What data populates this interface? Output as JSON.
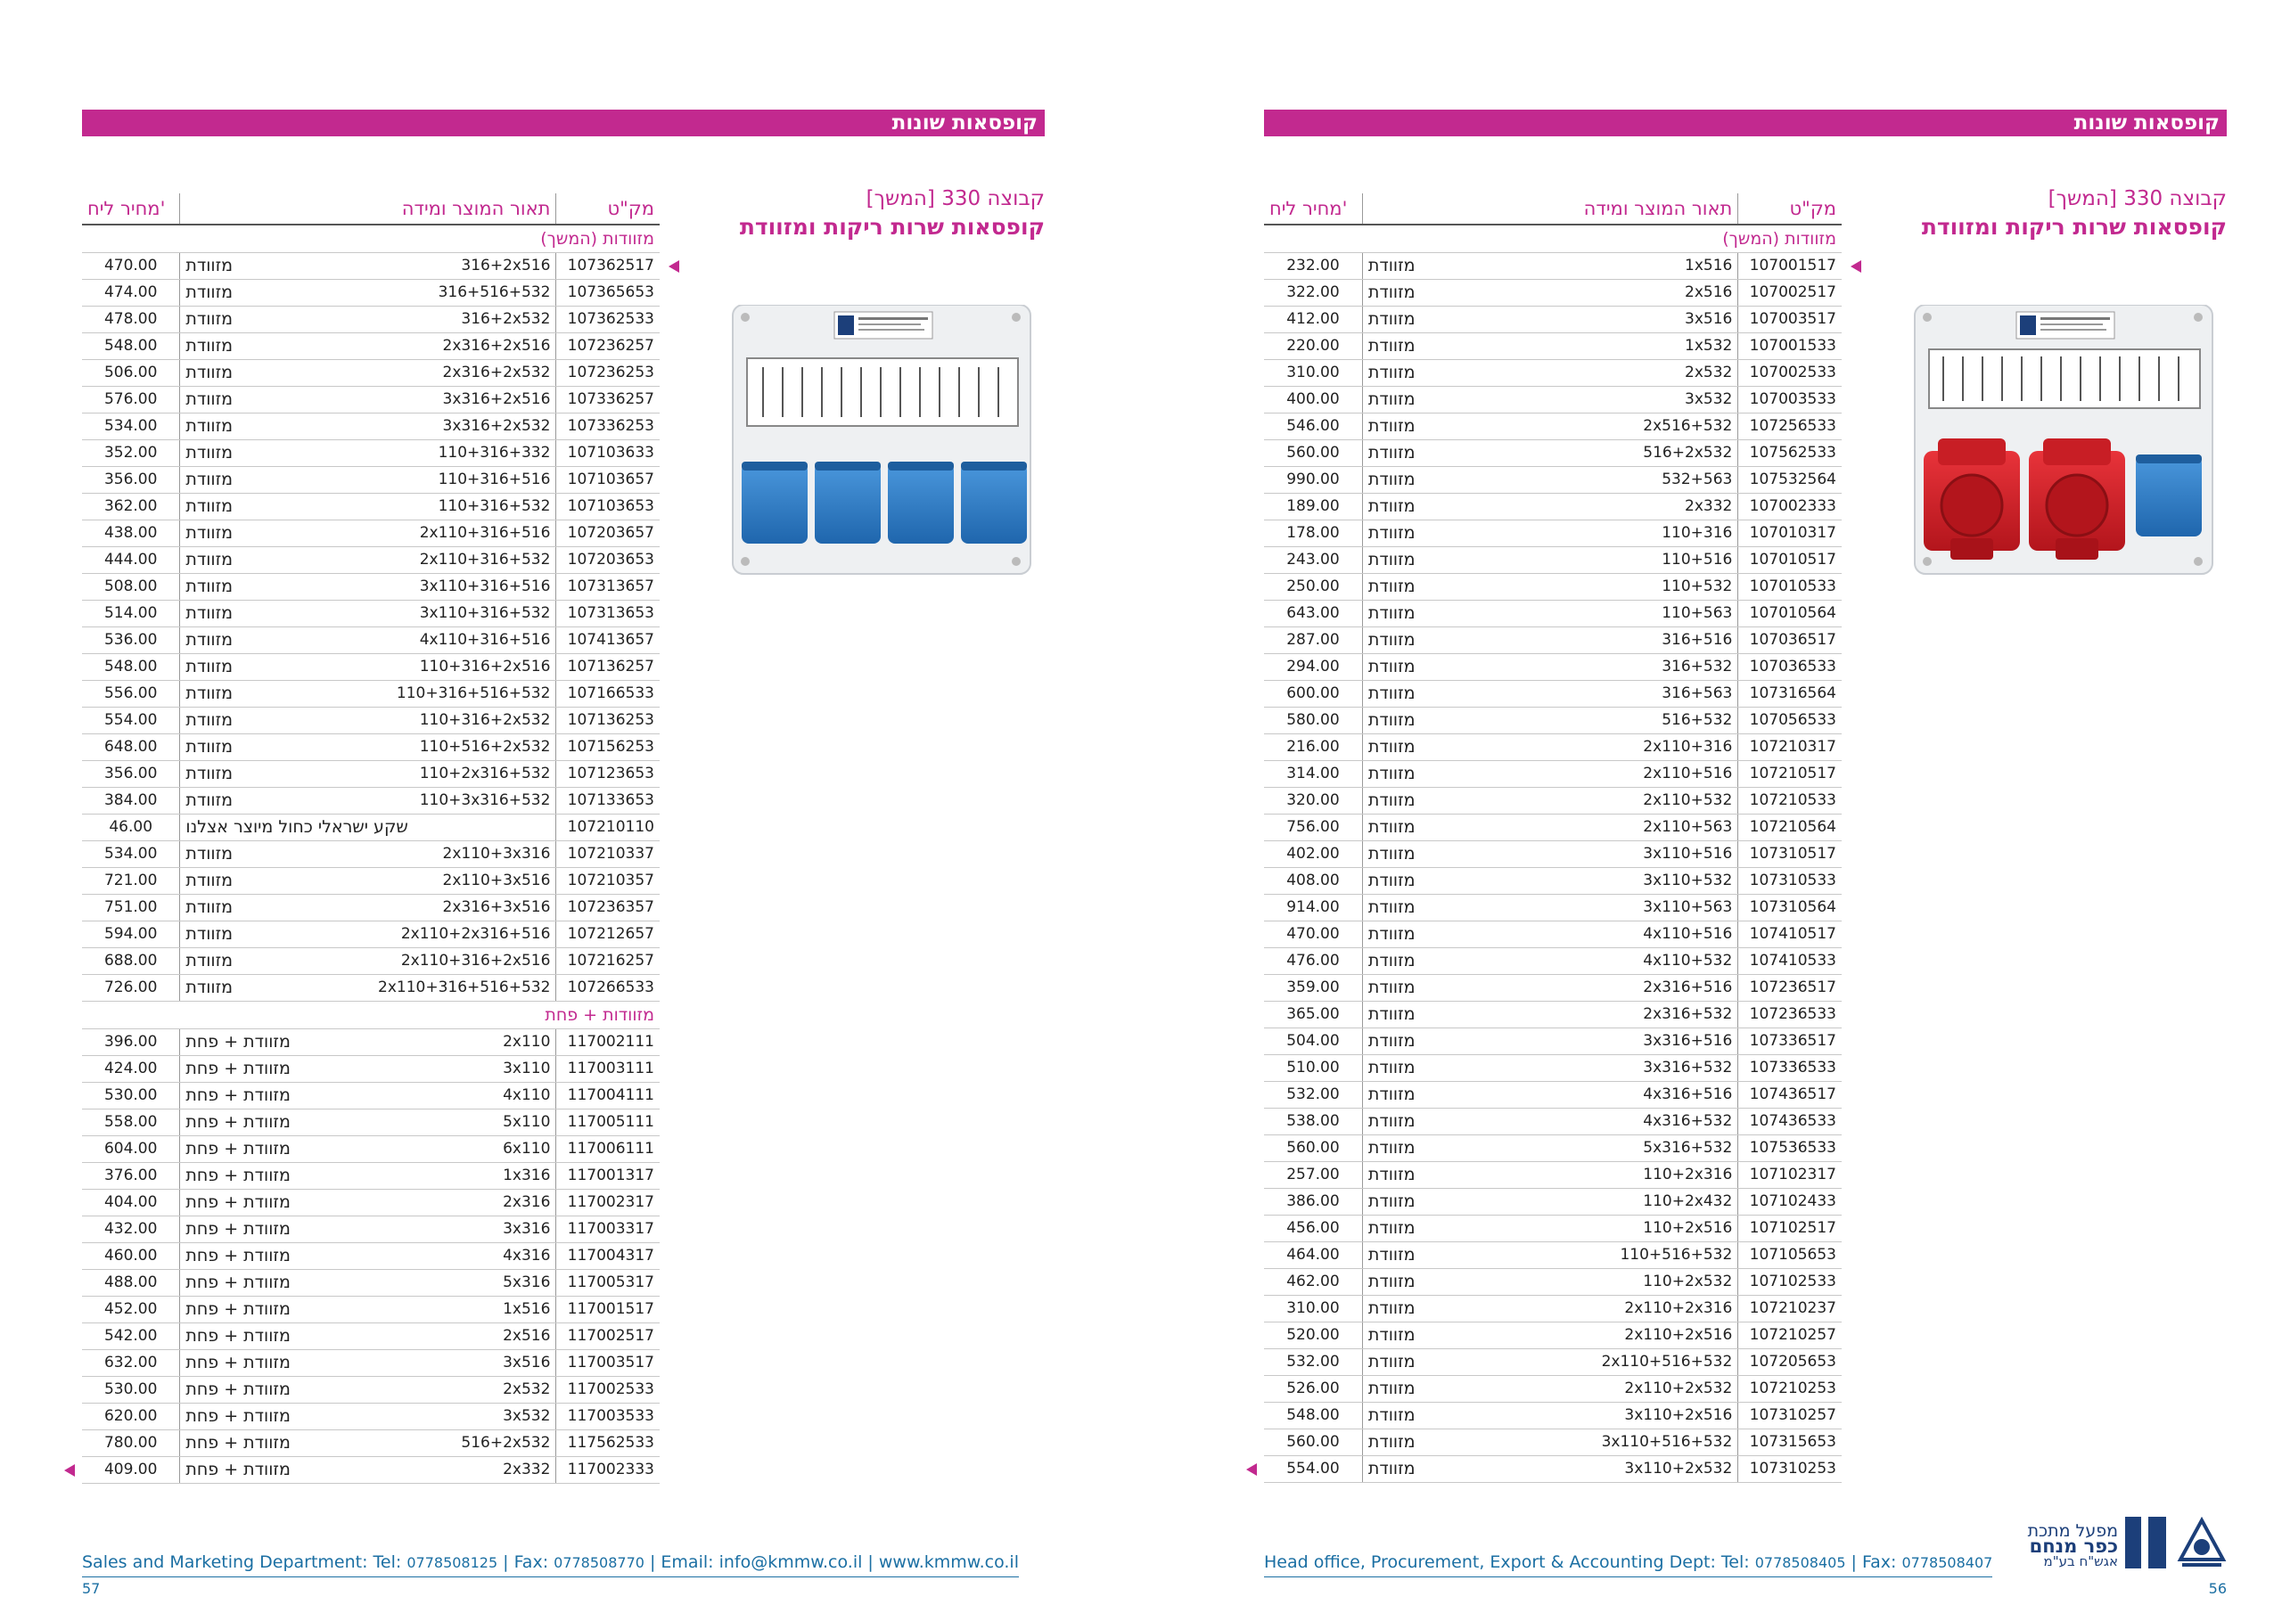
{
  "section_title": "קופסאות שונות",
  "group_title": "קבוצה 330 [המשך]",
  "group_subtitle": "קופסאות שרות ריקות ומזוודת",
  "headers": {
    "code": "מק\"ט",
    "desc": "תאור המוצר ומידה",
    "price": "מחיר ליח'"
  },
  "subheader_continued": "מזוודות (המשך)",
  "subheader_plate": "מזוודות + פחת",
  "right_rows": [
    [
      "107001517",
      "מזוודת",
      "1x516",
      "232.00"
    ],
    [
      "107002517",
      "מזוודת",
      "2x516",
      "322.00"
    ],
    [
      "107003517",
      "מזוודת",
      "3x516",
      "412.00"
    ],
    [
      "107001533",
      "מזוודת",
      "1x532",
      "220.00"
    ],
    [
      "107002533",
      "מזוודת",
      "2x532",
      "310.00"
    ],
    [
      "107003533",
      "מזוודת",
      "3x532",
      "400.00"
    ],
    [
      "107256533",
      "מזוודת",
      "2x516+532",
      "546.00"
    ],
    [
      "107562533",
      "מזוודת",
      "516+2x532",
      "560.00"
    ],
    [
      "107532564",
      "מזוודת",
      "532+563",
      "990.00"
    ],
    [
      "107002333",
      "מזוודת",
      "2x332",
      "189.00"
    ],
    [
      "107010317",
      "מזוודת",
      "110+316",
      "178.00"
    ],
    [
      "107010517",
      "מזוודת",
      "110+516",
      "243.00"
    ],
    [
      "107010533",
      "מזוודת",
      "110+532",
      "250.00"
    ],
    [
      "107010564",
      "מזוודת",
      "110+563",
      "643.00"
    ],
    [
      "107036517",
      "מזוודת",
      "316+516",
      "287.00"
    ],
    [
      "107036533",
      "מזוודת",
      "316+532",
      "294.00"
    ],
    [
      "107316564",
      "מזוודת",
      "316+563",
      "600.00"
    ],
    [
      "107056533",
      "מזוודת",
      "516+532",
      "580.00"
    ],
    [
      "107210317",
      "מזוודת",
      "2x110+316",
      "216.00"
    ],
    [
      "107210517",
      "מזוודת",
      "2x110+516",
      "314.00"
    ],
    [
      "107210533",
      "מזוודת",
      "2x110+532",
      "320.00"
    ],
    [
      "107210564",
      "מזוודת",
      "2x110+563",
      "756.00"
    ],
    [
      "107310517",
      "מזוודת",
      "3x110+516",
      "402.00"
    ],
    [
      "107310533",
      "מזוודת",
      "3x110+532",
      "408.00"
    ],
    [
      "107310564",
      "מזוודת",
      "3x110+563",
      "914.00"
    ],
    [
      "107410517",
      "מזוודת",
      "4x110+516",
      "470.00"
    ],
    [
      "107410533",
      "מזוודת",
      "4x110+532",
      "476.00"
    ],
    [
      "107236517",
      "מזוודת",
      "2x316+516",
      "359.00"
    ],
    [
      "107236533",
      "מזוודת",
      "2x316+532",
      "365.00"
    ],
    [
      "107336517",
      "מזוודת",
      "3x316+516",
      "504.00"
    ],
    [
      "107336533",
      "מזוודת",
      "3x316+532",
      "510.00"
    ],
    [
      "107436517",
      "מזוודת",
      "4x316+516",
      "532.00"
    ],
    [
      "107436533",
      "מזוודת",
      "4x316+532",
      "538.00"
    ],
    [
      "107536533",
      "מזוודת",
      "5x316+532",
      "560.00"
    ],
    [
      "107102317",
      "מזוודת",
      "110+2x316",
      "257.00"
    ],
    [
      "107102433",
      "מזוודת",
      "110+2x432",
      "386.00"
    ],
    [
      "107102517",
      "מזוודת",
      "110+2x516",
      "456.00"
    ],
    [
      "107105653",
      "מזוודת",
      "110+516+532",
      "464.00"
    ],
    [
      "107102533",
      "מזוודת",
      "110+2x532",
      "462.00"
    ],
    [
      "107210237",
      "מזוודת",
      "2x110+2x316",
      "310.00"
    ],
    [
      "107210257",
      "מזוודת",
      "2x110+2x516",
      "520.00"
    ],
    [
      "107205653",
      "מזוודת",
      "2x110+516+532",
      "532.00"
    ],
    [
      "107210253",
      "מזוודת",
      "2x110+2x532",
      "526.00"
    ],
    [
      "107310257",
      "מזוודת",
      "3x110+2x516",
      "548.00"
    ],
    [
      "107315653",
      "מזוודת",
      "3x110+516+532",
      "560.00"
    ],
    [
      "107310253",
      "מזוודת",
      "3x110+2x532",
      "554.00"
    ]
  ],
  "left_rows_a": [
    [
      "107362517",
      "מזוודת",
      "316+2x516",
      "470.00"
    ],
    [
      "107365653",
      "מזוודת",
      "316+516+532",
      "474.00"
    ],
    [
      "107362533",
      "מזוודת",
      "316+2x532",
      "478.00"
    ],
    [
      "107236257",
      "מזוודת",
      "2x316+2x516",
      "548.00"
    ],
    [
      "107236253",
      "מזוודת",
      "2x316+2x532",
      "506.00"
    ],
    [
      "107336257",
      "מזוודת",
      "3x316+2x516",
      "576.00"
    ],
    [
      "107336253",
      "מזוודת",
      "3x316+2x532",
      "534.00"
    ],
    [
      "107103633",
      "מזוודת",
      "110+316+332",
      "352.00"
    ],
    [
      "107103657",
      "מזוודת",
      "110+316+516",
      "356.00"
    ],
    [
      "107103653",
      "מזוודת",
      "110+316+532",
      "362.00"
    ],
    [
      "107203657",
      "מזוודת",
      "2x110+316+516",
      "438.00"
    ],
    [
      "107203653",
      "מזוודת",
      "2x110+316+532",
      "444.00"
    ],
    [
      "107313657",
      "מזוודת",
      "3x110+316+516",
      "508.00"
    ],
    [
      "107313653",
      "מזוודת",
      "3x110+316+532",
      "514.00"
    ],
    [
      "107413657",
      "מזוודת",
      "4x110+316+516",
      "536.00"
    ],
    [
      "107136257",
      "מזוודת",
      "110+316+2x516",
      "548.00"
    ],
    [
      "107166533",
      "מזוודת",
      "110+316+516+532",
      "556.00"
    ],
    [
      "107136253",
      "מזוודת",
      "110+316+2x532",
      "554.00"
    ],
    [
      "107156253",
      "מזוודת",
      "110+516+2x532",
      "648.00"
    ],
    [
      "107123653",
      "מזוודת",
      "110+2x316+532",
      "356.00"
    ],
    [
      "107133653",
      "מזוודת",
      "110+3x316+532",
      "384.00"
    ],
    [
      "107210110",
      "שקע ישראלי כחול מיוצר אצלנו",
      "",
      "46.00"
    ],
    [
      "107210337",
      "מזוודת",
      "2x110+3x316",
      "534.00"
    ],
    [
      "107210357",
      "מזוודת",
      "2x110+3x516",
      "721.00"
    ],
    [
      "107236357",
      "מזוודת",
      "2x316+3x516",
      "751.00"
    ],
    [
      "107212657",
      "מזוודת",
      "2x110+2x316+516",
      "594.00"
    ],
    [
      "107216257",
      "מזוודת",
      "2x110+316+2x516",
      "688.00"
    ],
    [
      "107266533",
      "מזוודת",
      "2x110+316+516+532",
      "726.00"
    ]
  ],
  "left_rows_b": [
    [
      "117002111",
      "מזוודת + פחת",
      "2x110",
      "396.00"
    ],
    [
      "117003111",
      "מזוודת + פחת",
      "3x110",
      "424.00"
    ],
    [
      "117004111",
      "מזוודת + פחת",
      "4x110",
      "530.00"
    ],
    [
      "117005111",
      "מזוודת + פחת",
      "5x110",
      "558.00"
    ],
    [
      "117006111",
      "מזוודת + פחת",
      "6x110",
      "604.00"
    ],
    [
      "117001317",
      "מזוודת + פחת",
      "1x316",
      "376.00"
    ],
    [
      "117002317",
      "מזוודת + פחת",
      "2x316",
      "404.00"
    ],
    [
      "117003317",
      "מזוודת + פחת",
      "3x316",
      "432.00"
    ],
    [
      "117004317",
      "מזוודת + פחת",
      "4x316",
      "460.00"
    ],
    [
      "117005317",
      "מזוודת + פחת",
      "5x316",
      "488.00"
    ],
    [
      "117001517",
      "מזוודת + פחת",
      "1x516",
      "452.00"
    ],
    [
      "117002517",
      "מזוודת + פחת",
      "2x516",
      "542.00"
    ],
    [
      "117003517",
      "מזוודת + פחת",
      "3x516",
      "632.00"
    ],
    [
      "117002533",
      "מזוודת + פחת",
      "2x532",
      "530.00"
    ],
    [
      "117003533",
      "מזוודת + פחת",
      "3x532",
      "620.00"
    ],
    [
      "117562533",
      "מזוודת + פחת",
      "516+2x532",
      "780.00"
    ],
    [
      "117002333",
      "מזוודת + פחת",
      "2x332",
      "409.00"
    ]
  ],
  "footer_left": {
    "text": "Sales and Marketing Department: Tel: ",
    "tel": "0778508125",
    "fax_label": " | Fax: ",
    "fax": "0778508770",
    "rest": " | Email: info@kmmw.co.il | www.kmmw.co.il",
    "page": "57"
  },
  "footer_right": {
    "text": "Head office, Procurement, Export & Accounting Dept: Tel: ",
    "tel": "0778508405",
    "fax_label": " | Fax: ",
    "fax": "0778508407",
    "page": "56"
  },
  "logo": {
    "line1": "מפעל מתכת",
    "line2": "כפר מנחם",
    "line3": "אגש\"ח בע\"מ"
  },
  "colors": {
    "accent": "#c2298f",
    "link": "#1b6fa3",
    "plug_red": "#d8232a",
    "socket_blue": "#2f7dc4"
  }
}
